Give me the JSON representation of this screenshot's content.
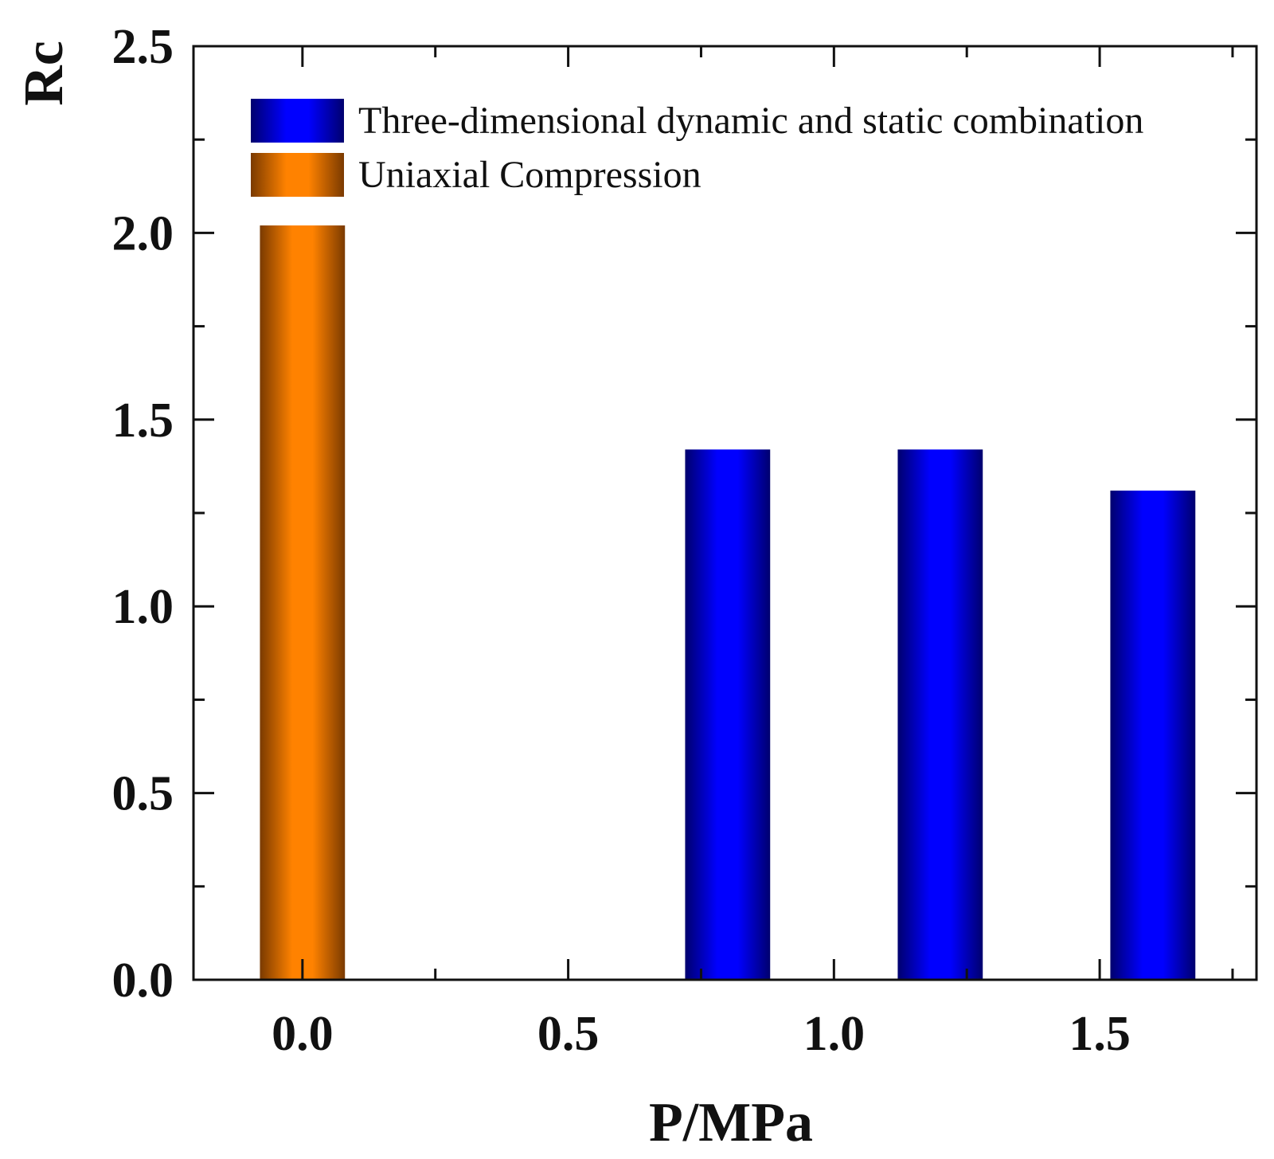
{
  "chart_data": {
    "type": "bar",
    "xlabel": "P/MPa",
    "ylabel": "Rc",
    "xlim": [
      -0.205,
      1.795
    ],
    "ylim": [
      0,
      2.5
    ],
    "x_ticks": [
      "0.0",
      "0.5",
      "1.0",
      "1.5"
    ],
    "y_ticks": [
      "0.0",
      "0.5",
      "1.0",
      "1.5",
      "2.0",
      "2.5"
    ],
    "bar_width": 0.16,
    "series": [
      {
        "name": "Uniaxial Compression",
        "color": "#FF8200",
        "shade": "#7A3A00",
        "points": [
          {
            "x": 0.0,
            "y": 2.02
          }
        ]
      },
      {
        "name": "Three-dimensional dynamic and static combination",
        "color": "#0000FF",
        "shade": "#00006E",
        "points": [
          {
            "x": 0.8,
            "y": 1.42
          },
          {
            "x": 1.2,
            "y": 1.42
          },
          {
            "x": 1.6,
            "y": 1.31
          }
        ]
      }
    ],
    "legend": {
      "position": "top-left",
      "entries": [
        {
          "label": "Three-dimensional dynamic and static combination",
          "color": "#0000FF",
          "shade": "#00006E"
        },
        {
          "label": "Uniaxial Compression",
          "color": "#FF8200",
          "shade": "#7A3A00"
        }
      ]
    }
  }
}
